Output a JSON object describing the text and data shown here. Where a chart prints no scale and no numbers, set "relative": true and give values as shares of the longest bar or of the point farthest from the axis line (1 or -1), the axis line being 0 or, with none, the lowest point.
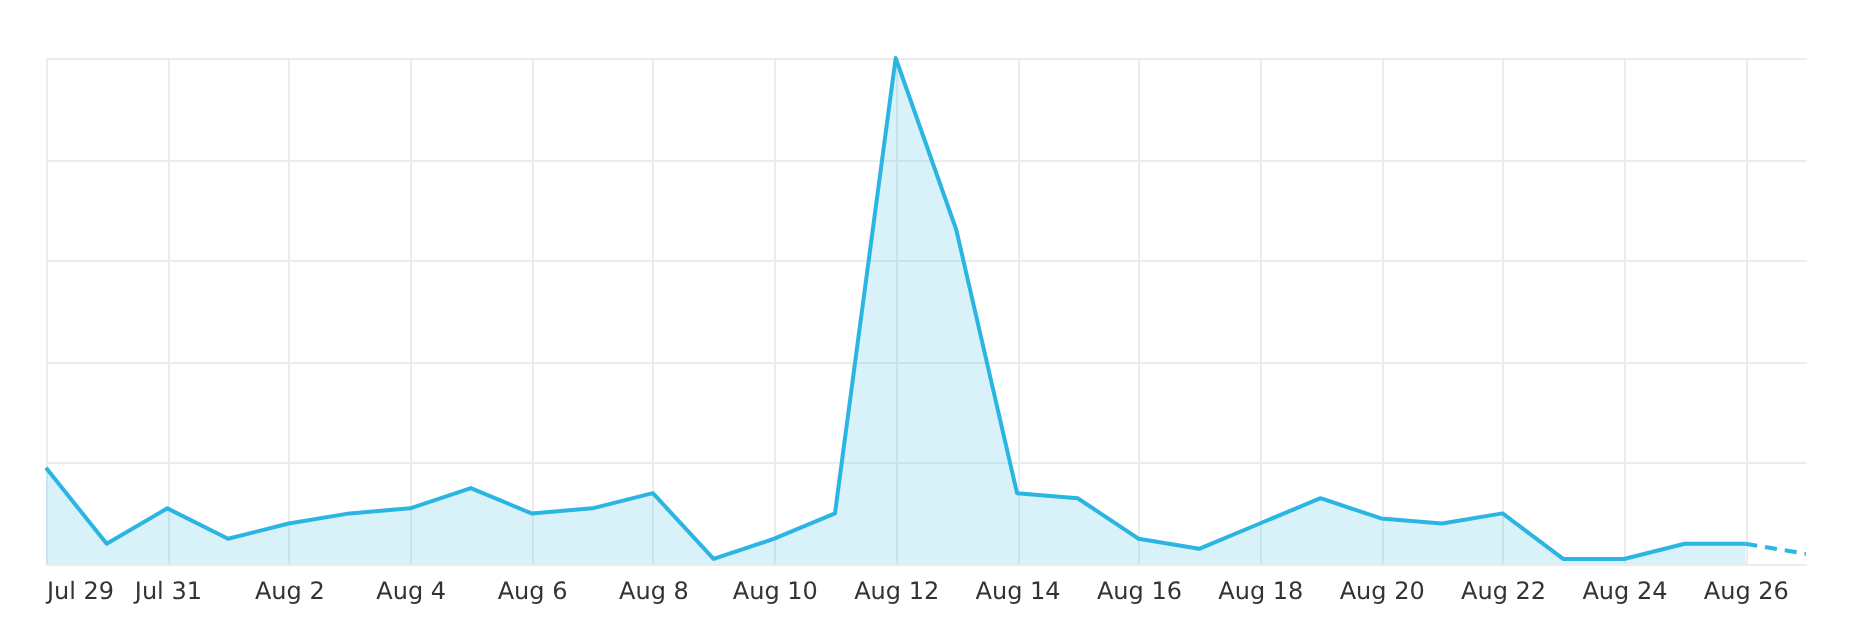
{
  "chart_data": {
    "type": "area",
    "relative": true,
    "grid": true,
    "xlim": [
      "--07-29",
      "--08-27"
    ],
    "xticks": [
      {
        "value": "--07-29",
        "label": "Jul 29"
      },
      {
        "value": "--07-31",
        "label": "Jul 31"
      },
      {
        "value": "--08-02",
        "label": "Aug 2"
      },
      {
        "value": "--08-04",
        "label": "Aug 4"
      },
      {
        "value": "--08-06",
        "label": "Aug 6"
      },
      {
        "value": "--08-08",
        "label": "Aug 8"
      },
      {
        "value": "--08-10",
        "label": "Aug 10"
      },
      {
        "value": "--08-12",
        "label": "Aug 12"
      },
      {
        "value": "--08-14",
        "label": "Aug 14"
      },
      {
        "value": "--08-16",
        "label": "Aug 16"
      },
      {
        "value": "--08-18",
        "label": "Aug 18"
      },
      {
        "value": "--08-20",
        "label": "Aug 20"
      },
      {
        "value": "--08-22",
        "label": "Aug 22"
      },
      {
        "value": "--08-24",
        "label": "Aug 24"
      },
      {
        "value": "--08-26",
        "label": "Aug 26"
      }
    ],
    "series": [
      {
        "color": "#2bb5e2",
        "x": [
          "--07-29",
          "--07-30",
          "--07-31",
          "--08-01",
          "--08-02",
          "--08-03",
          "--08-04",
          "--08-05",
          "--08-06",
          "--08-07",
          "--08-08",
          "--08-09",
          "--08-10",
          "--08-11",
          "--08-12",
          "--08-13",
          "--08-14",
          "--08-15",
          "--08-16",
          "--08-17",
          "--08-18",
          "--08-19",
          "--08-20",
          "--08-21",
          "--08-22",
          "--08-23",
          "--08-24",
          "--08-25",
          "--08-26"
        ],
        "values": [
          0.19,
          0.04,
          0.11,
          0.05,
          0.08,
          0.1,
          0.11,
          0.15,
          0.1,
          0.11,
          0.14,
          0.01,
          0.05,
          0.1,
          1,
          0.66,
          0.14,
          0.13,
          0.05,
          0.03,
          0.08,
          0.13,
          0.09,
          0.08,
          0.1,
          0.01,
          0.01,
          0.04,
          0.04
        ]
      },
      {
        "type": "line",
        "line_style": "dashed",
        "color": "#2bb5e2",
        "x": [
          "--08-26",
          "--08-27"
        ],
        "values": [
          0.04,
          0.02
        ]
      }
    ]
  }
}
